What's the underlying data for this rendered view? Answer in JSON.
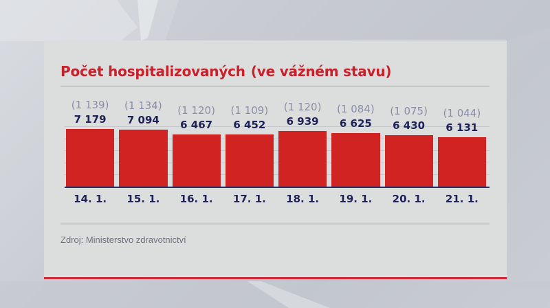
{
  "chart_data": {
    "type": "bar",
    "title": "Počet hospitalizovaných",
    "subtitle": "(ve vážném stavu)",
    "categories": [
      "14. 1.",
      "15. 1.",
      "16. 1.",
      "17. 1.",
      "18. 1.",
      "19. 1.",
      "20. 1.",
      "21. 1."
    ],
    "series": [
      {
        "name": "Počet hospitalizovaných",
        "values": [
          7179,
          7094,
          6467,
          6452,
          6939,
          6625,
          6430,
          6131
        ]
      },
      {
        "name": "ve vážném stavu",
        "values": [
          1139,
          1134,
          1120,
          1109,
          1120,
          1084,
          1075,
          1044
        ]
      }
    ],
    "xlabel": "",
    "ylabel": "",
    "ylim": [
      0,
      7500
    ],
    "grid": true,
    "legend": "none",
    "bar_color": "#d22323"
  },
  "header": {
    "title": "Počet hospitalizovaných",
    "subtitle": "(ve vážném stavu)"
  },
  "bars": [
    {
      "date": "14. 1.",
      "value_label": "7 179",
      "severe_label": "(1 139)"
    },
    {
      "date": "15. 1.",
      "value_label": "7 094",
      "severe_label": "(1 134)"
    },
    {
      "date": "16. 1.",
      "value_label": "6 467",
      "severe_label": "(1 120)"
    },
    {
      "date": "17. 1.",
      "value_label": "6 452",
      "severe_label": "(1 109)"
    },
    {
      "date": "18. 1.",
      "value_label": "6 939",
      "severe_label": "(1 120)"
    },
    {
      "date": "19. 1.",
      "value_label": "6 625",
      "severe_label": "(1 084)"
    },
    {
      "date": "20. 1.",
      "value_label": "6 430",
      "severe_label": "(1 075)"
    },
    {
      "date": "21. 1.",
      "value_label": "6 131",
      "severe_label": "(1 044)"
    }
  ],
  "footer": {
    "source": "Zdroj: Ministerstvo zdravotnictví"
  }
}
